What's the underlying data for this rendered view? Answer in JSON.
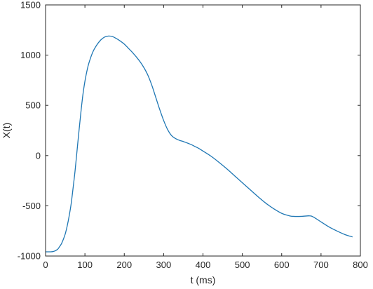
{
  "chart_data": {
    "type": "line",
    "title": "",
    "xlabel": "t (ms)",
    "ylabel": "X(t)",
    "xlim": [
      0,
      800
    ],
    "ylim": [
      -1000,
      1500
    ],
    "xticks": [
      0,
      100,
      200,
      300,
      400,
      500,
      600,
      700,
      800
    ],
    "yticks": [
      -1000,
      -500,
      0,
      500,
      1000,
      1500
    ],
    "grid": false,
    "box": true,
    "line_color": "#1f77b4",
    "series": [
      {
        "x": [
          0,
          10,
          20,
          30,
          35,
          40,
          45,
          50,
          55,
          60,
          65,
          70,
          75,
          80,
          85,
          90,
          95,
          100,
          105,
          110,
          120,
          130,
          140,
          150,
          160,
          170,
          180,
          190,
          200,
          210,
          220,
          230,
          240,
          250,
          260,
          270,
          280,
          290,
          300,
          310,
          320,
          330,
          340,
          350,
          360,
          370,
          380,
          390,
          400,
          420,
          440,
          460,
          480,
          500,
          520,
          540,
          560,
          580,
          600,
          620,
          630,
          650,
          670,
          680,
          700,
          720,
          740,
          760,
          780
        ],
        "y": [
          -958,
          -958,
          -955,
          -935,
          -910,
          -880,
          -835,
          -780,
          -700,
          -600,
          -480,
          -320,
          -150,
          50,
          250,
          440,
          610,
          740,
          840,
          920,
          1030,
          1100,
          1150,
          1180,
          1190,
          1185,
          1165,
          1140,
          1110,
          1070,
          1030,
          985,
          935,
          875,
          800,
          700,
          580,
          460,
          350,
          260,
          200,
          170,
          152,
          140,
          125,
          110,
          90,
          70,
          45,
          -5,
          -65,
          -130,
          -200,
          -270,
          -340,
          -410,
          -475,
          -530,
          -575,
          -600,
          -605,
          -605,
          -600,
          -610,
          -660,
          -710,
          -750,
          -785,
          -810
        ]
      }
    ]
  }
}
